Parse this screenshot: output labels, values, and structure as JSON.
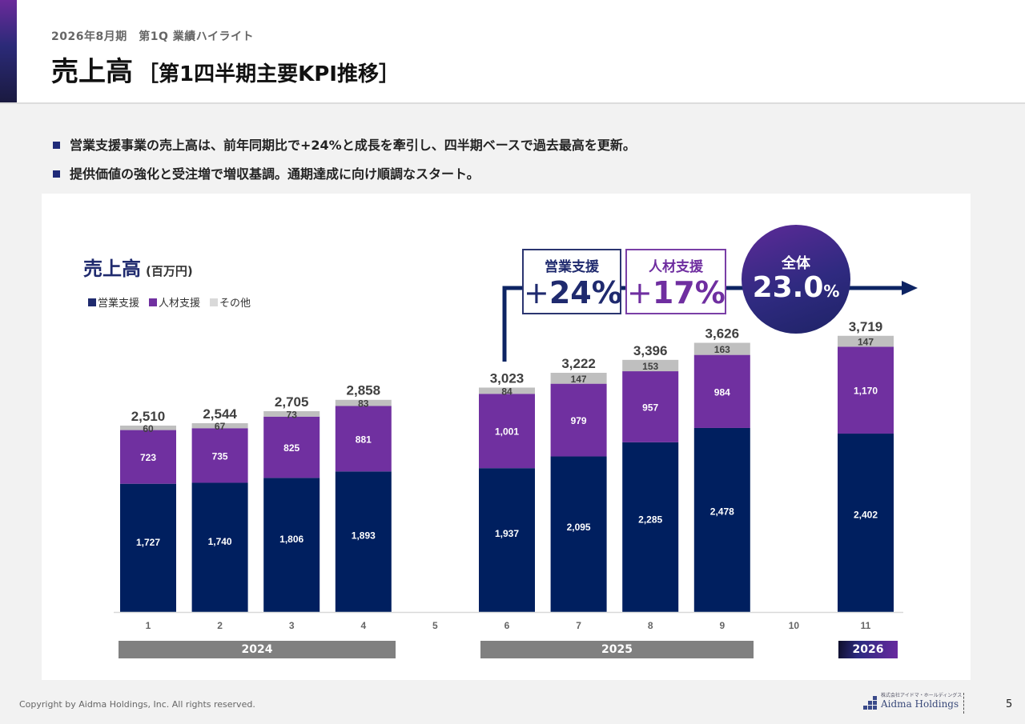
{
  "header": {
    "subtitle": "2026年8月期　第1Q 業績ハイライト",
    "title_main": "売上高",
    "title_sub": "［第1四半期主要KPI推移］"
  },
  "bullets": [
    "営業支援事業の売上高は、前年同期比で+24%と成長を牽引し、四半期ベースで過去最高を更新。",
    "提供価値の強化と受注増で増収基調。通期達成に向け順調なスタート。"
  ],
  "kpi": {
    "sales": {
      "label": "営業支援",
      "plus": "+",
      "value": "24%"
    },
    "hr": {
      "label": "人材支援",
      "plus": "+",
      "value": "17%"
    },
    "total": {
      "label": "全体",
      "value": "23.0",
      "unit": "%"
    }
  },
  "years": [
    {
      "label": "2024",
      "style": "gray"
    },
    {
      "label": "2025",
      "style": "gray"
    },
    {
      "label": "2026",
      "style": "gradient"
    }
  ],
  "footer": {
    "copyright": "Copyright by Aidma Holdings, Inc. All rights reserved.",
    "logo_jp": "株式会社アイドマ・ホールディングス",
    "logo_en": "Aidma Holdings",
    "page": "5"
  },
  "colors": {
    "sales": "#001f5f",
    "hr": "#7030a0",
    "other": "#bfbfbf",
    "arrow": "#0d2463"
  },
  "chart_data": {
    "type": "bar",
    "stacked": true,
    "title": "売上高",
    "unit_label": "(百万円)",
    "xlabel": "",
    "ylabel": "",
    "ylim": [
      0,
      4000
    ],
    "grid": false,
    "legend_position": "top-left",
    "categories": [
      "1",
      "2",
      "3",
      "4",
      "5",
      "6",
      "7",
      "8",
      "9",
      "10",
      "11"
    ],
    "series": [
      {
        "name": "営業支援",
        "color": "#001f5f",
        "values": [
          1727,
          1740,
          1806,
          1893,
          null,
          1937,
          2095,
          2285,
          2478,
          null,
          2402
        ]
      },
      {
        "name": "人材支援",
        "color": "#7030a0",
        "values": [
          723,
          735,
          825,
          881,
          null,
          1001,
          979,
          957,
          984,
          null,
          1170
        ]
      },
      {
        "name": "その他",
        "color": "#bfbfbf",
        "values": [
          60,
          67,
          73,
          83,
          null,
          84,
          147,
          153,
          163,
          null,
          147
        ]
      }
    ],
    "totals": [
      2510,
      2544,
      2705,
      2858,
      null,
      3023,
      3222,
      3396,
      3626,
      null,
      3719
    ],
    "labels": {
      "sales": [
        "1,727",
        "1,740",
        "1,806",
        "1,893",
        "",
        "1,937",
        "2,095",
        "2,285",
        "2,478",
        "",
        "2,402"
      ],
      "hr": [
        "723",
        "735",
        "825",
        "881",
        "",
        "1,001",
        "979",
        "957",
        "984",
        "",
        "1,170"
      ],
      "other": [
        "60",
        "67",
        "73",
        "83",
        "",
        "84",
        "147",
        "153",
        "163",
        "",
        "147"
      ],
      "totals": [
        "2,510",
        "2,544",
        "2,705",
        "2,858",
        "",
        "3,023",
        "3,222",
        "3,396",
        "3,626",
        "",
        "3,719"
      ]
    }
  }
}
